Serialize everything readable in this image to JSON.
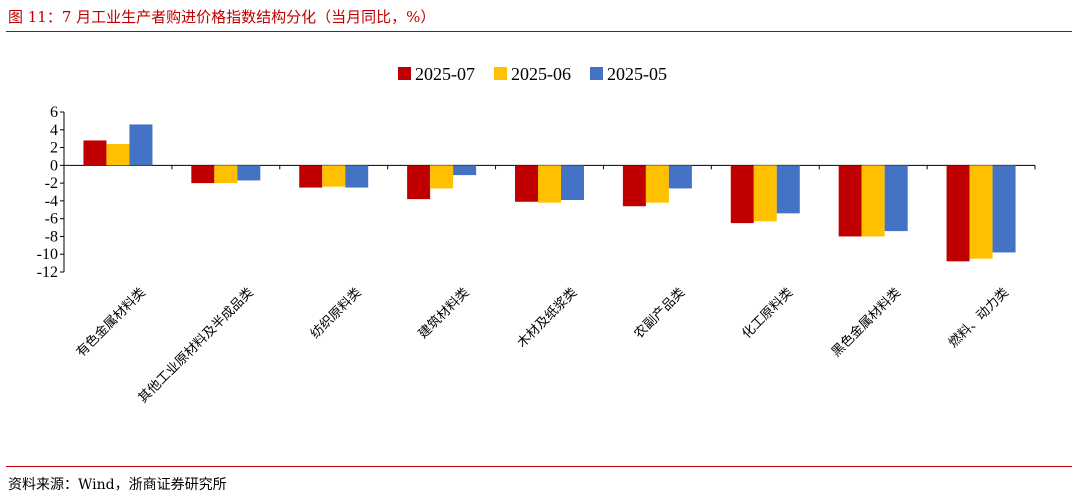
{
  "figure": {
    "number_label": "图 11：",
    "title": "7 月工业生产者购进价格指数结构分化（当月同比，%）",
    "source": "资料来源：Wind，浙商证券研究所"
  },
  "chart_data": {
    "type": "bar",
    "title": "",
    "xlabel": "",
    "ylabel": "",
    "ylim": [
      -12,
      6
    ],
    "yticks": [
      6,
      4,
      2,
      0,
      -2,
      -4,
      -6,
      -8,
      -10,
      -12
    ],
    "grid": false,
    "legend_position": "top-center",
    "categories": [
      "有色金属材料类",
      "其他工业原材料及半成品类",
      "纺织原料类",
      "建筑材料类",
      "木材及纸浆类",
      "农副产品类",
      "化工原料类",
      "黑色金属材料类",
      "燃料、动力类"
    ],
    "series": [
      {
        "name": "2025-07",
        "color": "#c00000",
        "values": [
          2.8,
          -2.0,
          -2.5,
          -3.8,
          -4.1,
          -4.6,
          -6.5,
          -8.0,
          -10.8
        ]
      },
      {
        "name": "2025-06",
        "color": "#ffc000",
        "values": [
          2.4,
          -2.0,
          -2.4,
          -2.6,
          -4.2,
          -4.2,
          -6.3,
          -8.0,
          -10.5
        ]
      },
      {
        "name": "2025-05",
        "color": "#4472c4",
        "values": [
          4.6,
          -1.7,
          -2.5,
          -1.1,
          -3.9,
          -2.6,
          -5.4,
          -7.4,
          -9.8
        ]
      }
    ]
  }
}
